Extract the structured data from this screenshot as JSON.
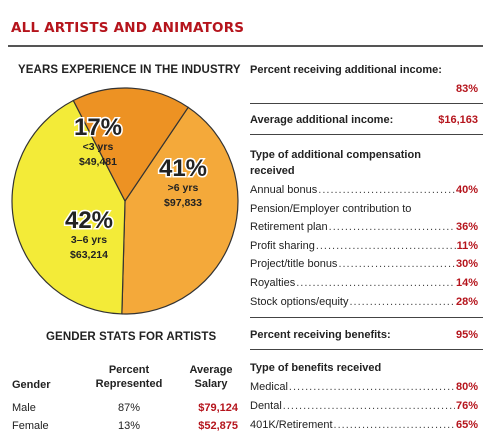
{
  "page_title": "ALL ARTISTS AND ANIMATORS",
  "chart_data": {
    "type": "pie",
    "title": "YEARS EXPERIENCE IN THE INDUSTRY",
    "slices": [
      {
        "percent": 41,
        "pct_label": "41%",
        "label": ">6 yrs",
        "salary": "$97,833",
        "color": "#f4a93a"
      },
      {
        "percent": 42,
        "pct_label": "42%",
        "label": "3–6 yrs",
        "salary": "$63,214",
        "color": "#f3eb38"
      },
      {
        "percent": 17,
        "pct_label": "17%",
        "label": "<3 yrs",
        "salary": "$49,481",
        "color": "#ed9223"
      }
    ]
  },
  "gender": {
    "title": "GENDER STATS FOR ARTISTS",
    "headers": {
      "gender": "Gender",
      "percent": "Percent\nRepresented",
      "salary": "Average\nSalary"
    },
    "rows": [
      {
        "gender": "Male",
        "percent": "87%",
        "salary": "$79,124"
      },
      {
        "gender": "Female",
        "percent": "13%",
        "salary": "$52,875"
      }
    ]
  },
  "right": {
    "additional_income_label": "Percent receiving additional income:",
    "additional_income_value": "83%",
    "avg_income_label": "Average additional income:",
    "avg_income_value": "$16,163",
    "comp_title": "Type of additional compensation received",
    "comp_items": [
      {
        "label": "Annual bonus",
        "value": "40%"
      },
      {
        "label": "Pension/Employer contribution to",
        "value": ""
      },
      {
        "label": "Retirement plan",
        "value": "36%"
      },
      {
        "label": "Profit sharing",
        "value": "11%"
      },
      {
        "label": "Project/title bonus",
        "value": "30%"
      },
      {
        "label": "Royalties",
        "value": "14%"
      },
      {
        "label": "Stock options/equity",
        "value": "28%"
      }
    ],
    "benefits_label": "Percent receiving benefits:",
    "benefits_value": "95%",
    "benefits_title": "Type of benefits received",
    "benefit_items": [
      {
        "label": "Medical",
        "value": "80%"
      },
      {
        "label": "Dental",
        "value": "76%"
      },
      {
        "label": "401K/Retirement",
        "value": "65%"
      }
    ]
  }
}
